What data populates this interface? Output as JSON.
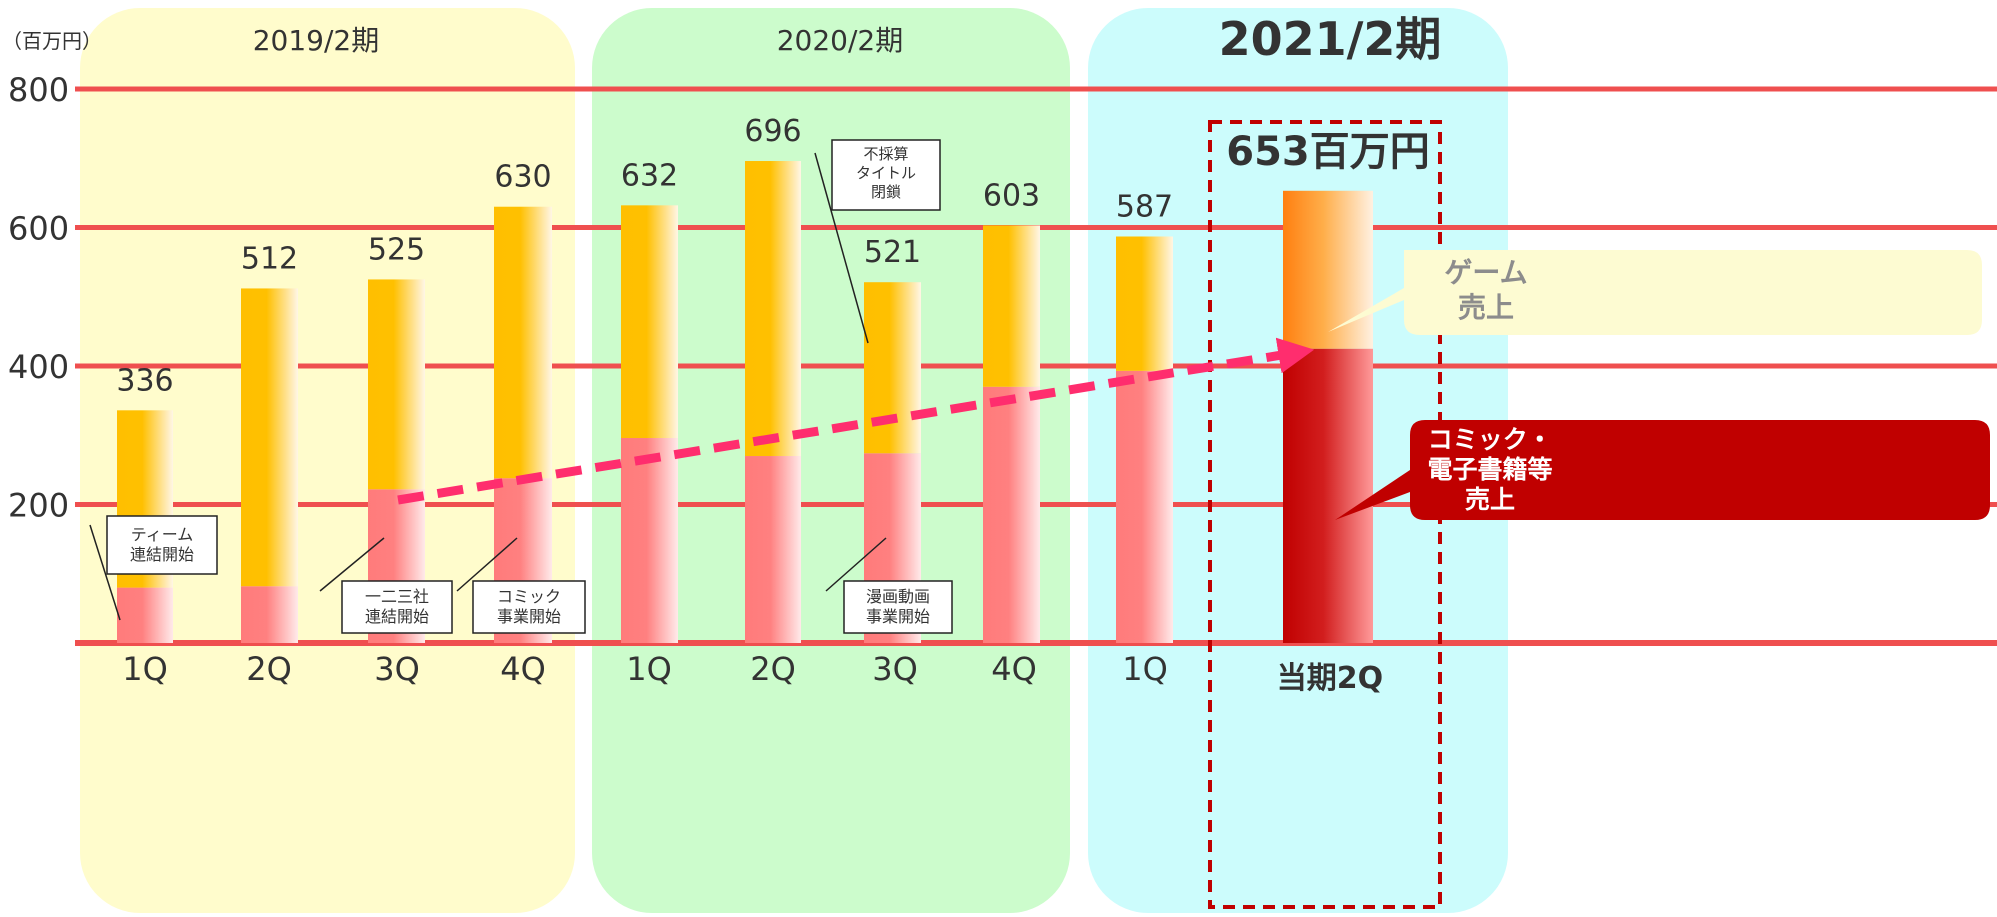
{
  "chart_data": {
    "type": "bar",
    "unit_label": "（百万円）",
    "yticks": [
      "800",
      "600",
      "400",
      "200"
    ],
    "ylim": [
      0,
      800
    ],
    "grid": true,
    "periods": [
      {
        "label": "2019/2期",
        "color": "#fffccc",
        "quarters": [
          0,
          1,
          2,
          3
        ]
      },
      {
        "label": "2020/2期",
        "color": "#ccfccc",
        "quarters": [
          4,
          5,
          6,
          7
        ]
      },
      {
        "label": "2021/2期",
        "color": "#ccfcfc",
        "quarters": [
          8,
          9
        ],
        "emphasis": true
      }
    ],
    "categories": [
      "1Q",
      "2Q",
      "3Q",
      "4Q",
      "1Q",
      "2Q",
      "3Q",
      "4Q",
      "1Q",
      "当期2Q"
    ],
    "totals": [
      "336",
      "512",
      "525",
      "630",
      "632",
      "696",
      "521",
      "603",
      "587",
      "653百万円"
    ],
    "total_values": [
      336,
      512,
      525,
      630,
      632,
      696,
      521,
      603,
      587,
      653
    ],
    "series": [
      {
        "name": "コミック・電子書籍等売上",
        "values": [
          80,
          82,
          222,
          238,
          296,
          270,
          274,
          370,
          393,
          425
        ]
      },
      {
        "name": "ゲーム売上",
        "values": [
          256,
          430,
          303,
          392,
          336,
          426,
          247,
          233,
          194,
          228
        ]
      }
    ],
    "colors": {
      "game": "#ffc000",
      "comic": "#ff7b7b",
      "game_current": "#ff8a1e",
      "comic_current": "#c00000",
      "grid": "#ef4f4f",
      "trend_arrow": "#ff2d6e",
      "highlight_box": "#c00000"
    },
    "annotations": [
      {
        "lines": [
          "ティーム",
          "連結開始"
        ],
        "quarter": 0
      },
      {
        "lines": [
          "一二三社",
          "連結開始"
        ],
        "quarter": 2
      },
      {
        "lines": [
          "コミック",
          "事業開始"
        ],
        "quarter": 3
      },
      {
        "lines": [
          "不採算",
          "タイトル",
          "閉鎖"
        ],
        "quarter": 6
      },
      {
        "lines": [
          "漫画動画",
          "事業開始"
        ],
        "quarter": 6
      }
    ],
    "legend_labels": [
      {
        "lines": [
          "ゲーム",
          "売上"
        ],
        "series": "ゲーム売上"
      },
      {
        "lines": [
          "コミック・",
          "電子書籍等",
          "売上"
        ],
        "series": "コミック・電子書籍等売上"
      }
    ]
  }
}
